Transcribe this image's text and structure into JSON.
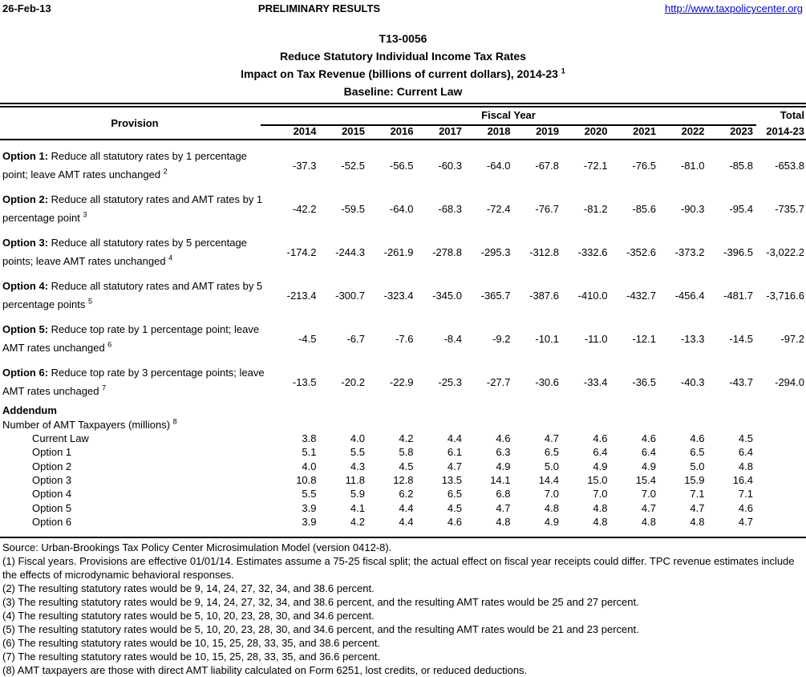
{
  "header": {
    "date": "26-Feb-13",
    "status": "PRELIMINARY RESULTS",
    "link": "http://www.taxpolicycenter.org"
  },
  "title": {
    "id": "T13-0056",
    "line1": "Reduce Statutory Individual Income Tax Rates",
    "line2": "Impact on Tax Revenue (billions of current dollars), 2014-23",
    "line2_sup": "1",
    "line3": "Baseline: Current Law"
  },
  "colors": {
    "link_blue": "#0000EE",
    "text": "#000000",
    "background": "#ffffff"
  },
  "table": {
    "provision_header": "Provision",
    "fiscal_year_header": "Fiscal Year",
    "total_header": "Total",
    "total_subheader": "2014-23",
    "years": [
      "2014",
      "2015",
      "2016",
      "2017",
      "2018",
      "2019",
      "2020",
      "2021",
      "2022",
      "2023"
    ],
    "rows": [
      {
        "label_bold": "Option 1:",
        "label_text": " Reduce all statutory rates by 1 percentage point; leave AMT rates unchanged ",
        "sup": "2",
        "values": [
          "-37.3",
          "-52.5",
          "-56.5",
          "-60.3",
          "-64.0",
          "-67.8",
          "-72.1",
          "-76.5",
          "-81.0",
          "-85.8"
        ],
        "total": "-653.8"
      },
      {
        "label_bold": "Option 2:",
        "label_text": " Reduce all statutory rates and AMT rates by 1 percentage point ",
        "sup": "3",
        "values": [
          "-42.2",
          "-59.5",
          "-64.0",
          "-68.3",
          "-72.4",
          "-76.7",
          "-81.2",
          "-85.6",
          "-90.3",
          "-95.4"
        ],
        "total": "-735.7"
      },
      {
        "label_bold": "Option 3:",
        "label_text": " Reduce all statutory rates by 5 percentage points; leave AMT rates unchanged ",
        "sup": "4",
        "values": [
          "-174.2",
          "-244.3",
          "-261.9",
          "-278.8",
          "-295.3",
          "-312.8",
          "-332.6",
          "-352.6",
          "-373.2",
          "-396.5"
        ],
        "total": "-3,022.2"
      },
      {
        "label_bold": "Option 4:",
        "label_text": " Reduce all statutory rates and AMT rates by 5 percentage points ",
        "sup": "5",
        "values": [
          "-213.4",
          "-300.7",
          "-323.4",
          "-345.0",
          "-365.7",
          "-387.6",
          "-410.0",
          "-432.7",
          "-456.4",
          "-481.7"
        ],
        "total": "-3,716.6"
      },
      {
        "label_bold": "Option 5:",
        "label_text": " Reduce top rate by 1 percentage point; leave AMT rates unchanged ",
        "sup": "6",
        "values": [
          "-4.5",
          "-6.7",
          "-7.6",
          "-8.4",
          "-9.2",
          "-10.1",
          "-11.0",
          "-12.1",
          "-13.3",
          "-14.5"
        ],
        "total": "-97.2"
      },
      {
        "label_bold": "Option 6:",
        "label_text": " Reduce top rate by 3 percentage points; leave AMT rates unchaged ",
        "sup": "7",
        "values": [
          "-13.5",
          "-20.2",
          "-22.9",
          "-25.3",
          "-27.7",
          "-30.6",
          "-33.4",
          "-36.5",
          "-40.3",
          "-43.7"
        ],
        "total": "-294.0"
      }
    ]
  },
  "addendum": {
    "title": "Addendum",
    "subtitle": "Number of AMT Taxpayers (millions) ",
    "subtitle_sup": "8",
    "rows": [
      {
        "label": "Current Law",
        "values": [
          "3.8",
          "4.0",
          "4.2",
          "4.4",
          "4.6",
          "4.7",
          "4.6",
          "4.6",
          "4.6",
          "4.5"
        ]
      },
      {
        "label": "Option 1",
        "values": [
          "5.1",
          "5.5",
          "5.8",
          "6.1",
          "6.3",
          "6.5",
          "6.4",
          "6.4",
          "6.5",
          "6.4"
        ]
      },
      {
        "label": "Option 2",
        "values": [
          "4.0",
          "4.3",
          "4.5",
          "4.7",
          "4.9",
          "5.0",
          "4.9",
          "4.9",
          "5.0",
          "4.8"
        ]
      },
      {
        "label": "Option 3",
        "values": [
          "10.8",
          "11.8",
          "12.8",
          "13.5",
          "14.1",
          "14.4",
          "15.0",
          "15.4",
          "15.9",
          "16.4"
        ]
      },
      {
        "label": "Option 4",
        "values": [
          "5.5",
          "5.9",
          "6.2",
          "6.5",
          "6.8",
          "7.0",
          "7.0",
          "7.0",
          "7.1",
          "7.1"
        ]
      },
      {
        "label": "Option 5",
        "values": [
          "3.9",
          "4.1",
          "4.4",
          "4.5",
          "4.7",
          "4.8",
          "4.8",
          "4.7",
          "4.7",
          "4.6"
        ]
      },
      {
        "label": "Option 6",
        "values": [
          "3.9",
          "4.2",
          "4.4",
          "4.6",
          "4.8",
          "4.9",
          "4.8",
          "4.8",
          "4.8",
          "4.7"
        ]
      }
    ]
  },
  "footnotes": [
    "Source: Urban-Brookings Tax Policy Center Microsimulation Model (version 0412-8).",
    "(1) Fiscal years.  Provisions are effective 01/01/14. Estimates assume a 75-25 fiscal split; the actual effect on fiscal year receipts could differ.  TPC revenue estimates include the effects of microdynamic behavioral responses.",
    "(2) The resulting statutory rates would be 9, 14, 24, 27, 32, 34, and 38.6 percent.",
    "(3) The resulting statutory rates would be 9, 14, 24, 27, 32, 34, and 38.6 percent, and the resulting AMT rates would be 25 and 27 percent.",
    "(4) The resulting statutory rates would be 5, 10, 20, 23, 28, 30, and 34.6 percent.",
    "(5) The resulting statutory rates would be 5, 10, 20, 23, 28, 30, and 34.6 percent, and the resulting AMT rates would be 21 and 23 percent.",
    "(6) The resulting statutory rates would be 10, 15, 25, 28, 33, 35, and 38.6 percent.",
    "(7) The resulting statutory rates would be 10, 15, 25, 28, 33, 35, and 36.6 percent.",
    "(8) AMT taxpayers are those with direct AMT liability calculated on Form 6251, lost credits, or reduced deductions."
  ]
}
